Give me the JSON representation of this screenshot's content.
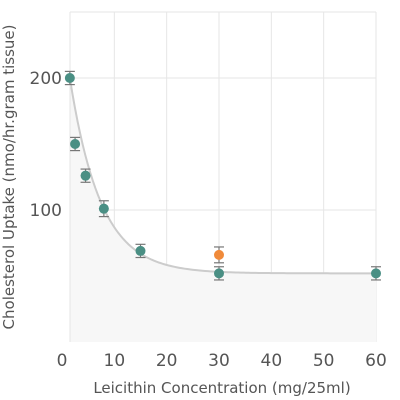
{
  "chart_data": {
    "type": "scatter",
    "xlabel": "Leicithin Concentration (mg/25ml)",
    "ylabel": "Cholesterol Uptake (nmo/hr.gram tissue)",
    "x_ticks": [
      {
        "value": 0,
        "label": "0"
      },
      {
        "value": 10,
        "label": "10"
      },
      {
        "value": 20,
        "label": "20"
      },
      {
        "value": 30,
        "label": "30"
      },
      {
        "value": 40,
        "label": "40"
      },
      {
        "value": 50,
        "label": "50"
      },
      {
        "value": 60,
        "label": "60"
      }
    ],
    "y_ticks": [
      {
        "value": 100,
        "label": "100"
      },
      {
        "value": 200,
        "label": "200"
      }
    ],
    "xlim": [
      0,
      60
    ],
    "ylim": [
      0,
      250
    ],
    "grid": true,
    "fit_curve": true,
    "colors": {
      "point": "#4a8f84",
      "highlight": "#f08a3a",
      "curve": "#cccccc",
      "grid": "#e6e6e6",
      "errorbar": "#777777"
    },
    "points": [
      {
        "x": 1.5,
        "y": 200,
        "err": 5,
        "highlight": false
      },
      {
        "x": 2.5,
        "y": 150,
        "err": 5,
        "highlight": false
      },
      {
        "x": 4.5,
        "y": 126,
        "err": 5,
        "highlight": false
      },
      {
        "x": 8,
        "y": 101,
        "err": 6,
        "highlight": false
      },
      {
        "x": 15,
        "y": 69,
        "err": 5,
        "highlight": false
      },
      {
        "x": 30,
        "y": 66,
        "err": 6,
        "highlight": true
      },
      {
        "x": 30,
        "y": 52,
        "err": 5,
        "highlight": false
      },
      {
        "x": 60,
        "y": 52,
        "err": 5,
        "highlight": false
      }
    ]
  }
}
